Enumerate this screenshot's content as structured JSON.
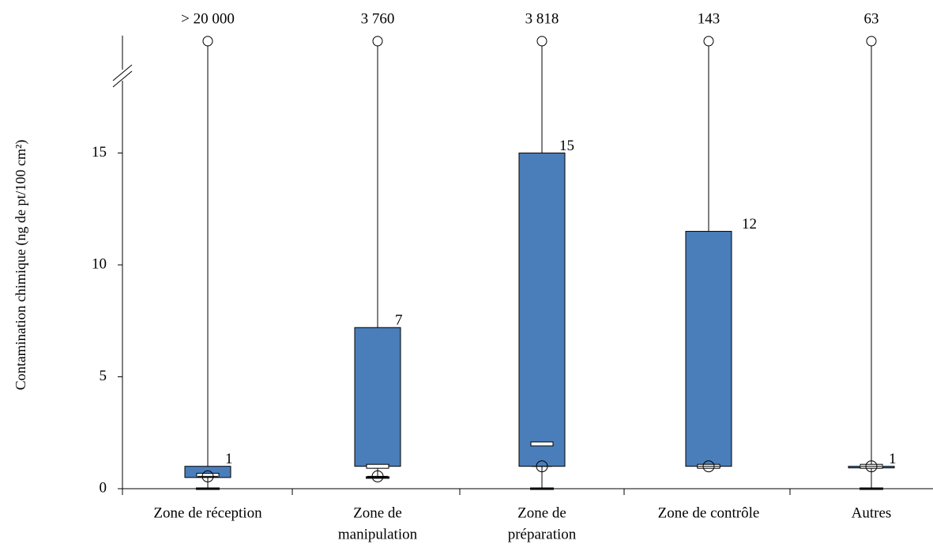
{
  "chart_data": {
    "type": "box",
    "y_label": "Contamination chimique  (ng de pt/100 cm²)",
    "categories": [
      [
        "Zone de réception"
      ],
      [
        "Zone de",
        "manipulation"
      ],
      [
        "Zone de",
        "préparation"
      ],
      [
        "Zone de contrôle"
      ],
      [
        "Autres"
      ]
    ],
    "min": [
      0,
      0.5,
      0,
      1,
      0
    ],
    "q1": [
      0.5,
      1,
      1,
      1,
      1
    ],
    "median": [
      0.6,
      1,
      2,
      1,
      1
    ],
    "q3": [
      1,
      7.2,
      15,
      11.5,
      1
    ],
    "q3_labels": [
      "1",
      "7",
      "15",
      "12",
      "1"
    ],
    "mean": [
      0.55,
      0.55,
      1,
      1,
      1
    ],
    "max": [
      20000,
      3760,
      3818,
      143,
      63
    ],
    "max_labels": [
      "> 20 000",
      "3 760",
      "3 818",
      "143",
      "63"
    ],
    "color": "#4a7ebb",
    "ylim": [
      0,
      20
    ],
    "yticks": [
      0,
      5,
      10,
      15
    ]
  }
}
